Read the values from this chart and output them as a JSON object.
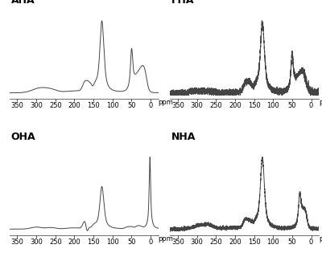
{
  "panels": [
    "AHA",
    "FHA",
    "OHA",
    "NHA"
  ],
  "x_label": "ppm",
  "x_range": [
    370,
    -20
  ],
  "tick_positions": [
    350,
    300,
    250,
    200,
    150,
    100,
    50,
    0
  ],
  "tick_labels": [
    "350",
    "300",
    "250",
    "200",
    "150",
    "100",
    "50",
    "0"
  ],
  "background": "#ffffff",
  "line_color": "#444444",
  "line_width": 0.7,
  "tick_fontsize": 6,
  "title_fontsize": 9
}
